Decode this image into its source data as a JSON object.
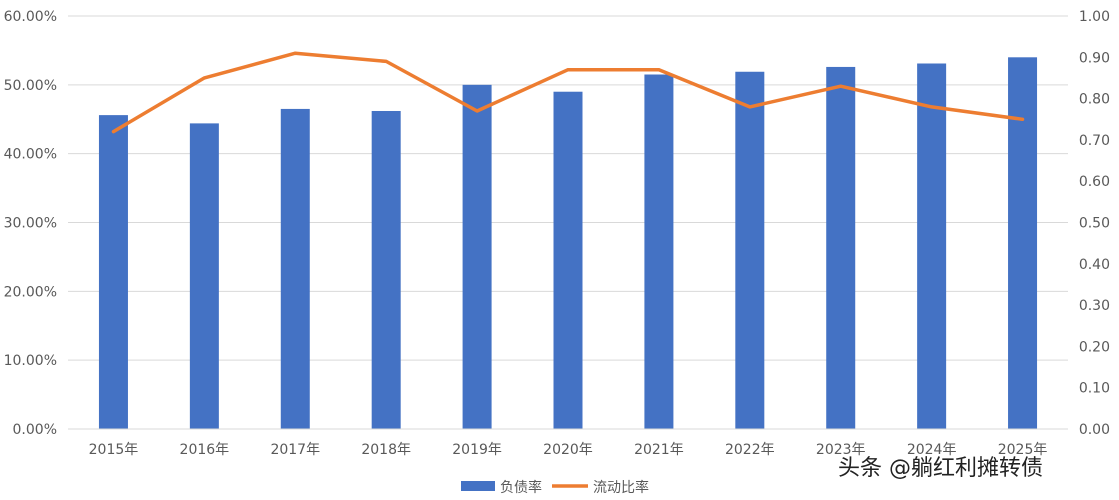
{
  "chart_data": {
    "type": "bar",
    "categories": [
      "2015年",
      "2016年",
      "2017年",
      "2018年",
      "2019年",
      "2020年",
      "2021年",
      "2022年",
      "2023年",
      "2024年",
      "2025年"
    ],
    "series": [
      {
        "name": "负债率",
        "type": "bar",
        "axis": "left",
        "color": "#4472C4",
        "values": [
          45.6,
          44.4,
          46.5,
          46.2,
          50.0,
          49.0,
          51.5,
          51.9,
          52.6,
          53.1,
          54.0
        ]
      },
      {
        "name": "流动比率",
        "type": "line",
        "axis": "right",
        "color": "#ED7D31",
        "values": [
          0.72,
          0.85,
          0.91,
          0.89,
          0.77,
          0.87,
          0.87,
          0.78,
          0.83,
          0.78,
          0.75
        ]
      }
    ],
    "y_left": {
      "ticks": [
        "0.00%",
        "10.00%",
        "20.00%",
        "30.00%",
        "40.00%",
        "50.00%",
        "60.00%"
      ],
      "range": [
        0,
        60
      ]
    },
    "y_right": {
      "ticks": [
        "0.00",
        "0.10",
        "0.20",
        "0.30",
        "0.40",
        "0.50",
        "0.60",
        "0.70",
        "0.80",
        "0.90",
        "1.00"
      ],
      "range": [
        0,
        1
      ]
    },
    "grid": true,
    "legend": "bottom-center"
  },
  "watermark": "头条 @躺红利摊转债"
}
